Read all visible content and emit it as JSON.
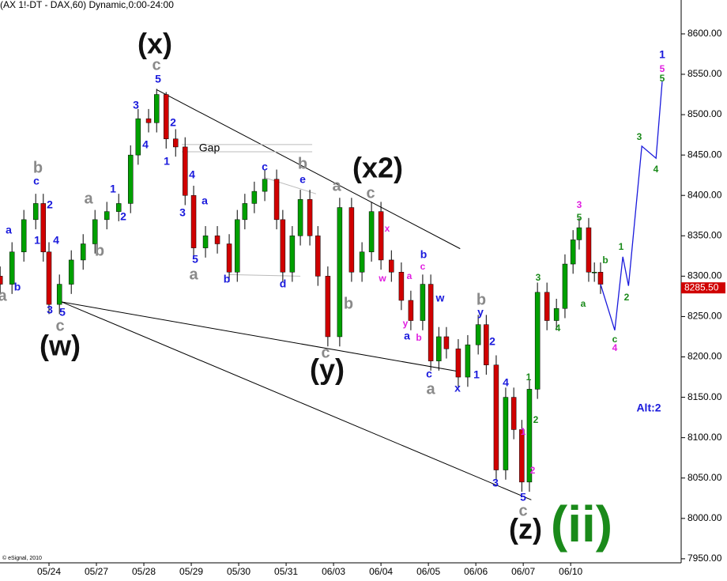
{
  "chart_data": {
    "type": "candlestick",
    "title": "(AX 1!-DT - DAX,60) Dynamic,0:00-24:00",
    "copyright": "© eSignal, 2010",
    "candles": {
      "x": [
        -1.03,
        -0.78,
        -0.53,
        -0.28,
        -0.12,
        0,
        0.22,
        0.47,
        0.72,
        0.97,
        1.22,
        1.47,
        1.72,
        1.88,
        2.1,
        2.27,
        2.47,
        2.67,
        2.87,
        3.05,
        3.3,
        3.55,
        3.8,
        3.97,
        4.13,
        4.33,
        4.55,
        4.8,
        4.93,
        5.13,
        5.3,
        5.5,
        5.67,
        5.88,
        6.13,
        6.38,
        6.6,
        6.8,
        7.0,
        7.22,
        7.43,
        7.63,
        7.88,
        8.05,
        8.22,
        8.38,
        8.63,
        8.83,
        9.05,
        9.22,
        9.43,
        9.63,
        9.8,
        9.97,
        10.13,
        10.3,
        10.5,
        10.7,
        10.88,
        11.05,
        11.18,
        11.38,
        11.5,
        11.63
      ],
      "open": [
        8300,
        8290,
        8330,
        8370,
        8390,
        8330,
        8265,
        8290,
        8320,
        8340,
        8370,
        8380,
        8390,
        8450,
        8495,
        8490,
        8525,
        8470,
        8460,
        8400,
        8335,
        8350,
        8340,
        8305,
        8370,
        8390,
        8405,
        8420,
        8370,
        8305,
        8350,
        8395,
        8350,
        8300,
        8225,
        8385,
        8305,
        8330,
        8380,
        8320,
        8305,
        8270,
        8245,
        8290,
        8195,
        8225,
        8210,
        8175,
        8215,
        8240,
        8190,
        8060,
        8150,
        8110,
        8045,
        8160,
        8280,
        8245,
        8260,
        8315,
        8345,
        8360,
        8305,
        8305
      ],
      "high": [
        8312,
        8342,
        8382,
        8402,
        8402,
        8342,
        8302,
        8332,
        8352,
        8382,
        8392,
        8402,
        8462,
        8507,
        8507,
        8532,
        8528,
        8482,
        8472,
        8412,
        8362,
        8362,
        8352,
        8382,
        8402,
        8417,
        8432,
        8432,
        8382,
        8362,
        8407,
        8407,
        8362,
        8312,
        8397,
        8397,
        8342,
        8392,
        8392,
        8332,
        8317,
        8282,
        8302,
        8302,
        8237,
        8237,
        8222,
        8227,
        8252,
        8252,
        8202,
        8162,
        8162,
        8122,
        8172,
        8292,
        8292,
        8272,
        8327,
        8357,
        8372,
        8372,
        8317,
        8317
      ],
      "low": [
        8278,
        8278,
        8318,
        8358,
        8318,
        8253,
        8253,
        8278,
        8308,
        8328,
        8358,
        8368,
        8378,
        8438,
        8478,
        8478,
        8458,
        8448,
        8388,
        8323,
        8323,
        8328,
        8293,
        8293,
        8358,
        8378,
        8393,
        8358,
        8293,
        8293,
        8338,
        8338,
        8288,
        8213,
        8213,
        8293,
        8293,
        8318,
        8308,
        8293,
        8258,
        8233,
        8233,
        8183,
        8183,
        8198,
        8163,
        8163,
        8203,
        8178,
        8048,
        8048,
        8098,
        8033,
        8033,
        8148,
        8233,
        8233,
        8248,
        8303,
        8333,
        8293,
        8293,
        8278
      ],
      "close": [
        8290,
        8330,
        8370,
        8390,
        8330,
        8265,
        8290,
        8320,
        8340,
        8370,
        8380,
        8390,
        8450,
        8495,
        8490,
        8525,
        8470,
        8460,
        8400,
        8335,
        8350,
        8340,
        8305,
        8370,
        8390,
        8405,
        8420,
        8370,
        8305,
        8350,
        8395,
        8350,
        8300,
        8225,
        8385,
        8305,
        8330,
        8380,
        8320,
        8305,
        8270,
        8245,
        8290,
        8195,
        8225,
        8210,
        8175,
        8215,
        8240,
        8190,
        8060,
        8150,
        8110,
        8045,
        8160,
        8280,
        8245,
        8260,
        8315,
        8345,
        8360,
        8305,
        8305,
        8290
      ],
      "up_color": "#00a000",
      "down_color": "#d00000"
    },
    "projection": {
      "x": [
        11.63,
        11.93,
        12.1,
        12.22,
        12.5,
        12.8,
        12.93
      ],
      "y": [
        8290,
        8233,
        8324,
        8288,
        8461,
        8446,
        8541
      ],
      "color": "#1a1adc"
    },
    "trendlines": [
      {
        "x": [
          2.27,
          8.67
        ],
        "y": [
          8531,
          8334
        ],
        "color": "#000000"
      },
      {
        "x": [
          0.27,
          8.63
        ],
        "y": [
          8268,
          8182
        ],
        "color": "#000000"
      },
      {
        "x": [
          0.27,
          10.17
        ],
        "y": [
          8268,
          8023
        ],
        "color": "#000000"
      },
      {
        "x": [
          2.8,
          5.55
        ],
        "y": [
          8463,
          8463
        ],
        "color": "#bbbbbb"
      },
      {
        "x": [
          2.8,
          5.55
        ],
        "y": [
          8454,
          8454
        ],
        "color": "#bbbbbb"
      },
      {
        "x": [
          4.55,
          5.63
        ],
        "y": [
          8422,
          8402
        ],
        "color": "#bbbbbb"
      },
      {
        "x": [
          3.8,
          5.3
        ],
        "y": [
          8302,
          8300
        ],
        "color": "#bbbbbb"
      }
    ],
    "last_price": {
      "value": 8285.5,
      "label": "8285.50",
      "color": "#d00000"
    },
    "xlim": [
      -1.033,
      13.33
    ],
    "ylim": [
      7945,
      8642
    ],
    "xticks": [
      {
        "value": 0,
        "label": "05/24"
      },
      {
        "value": 1,
        "label": "05/27"
      },
      {
        "value": 2,
        "label": "05/28"
      },
      {
        "value": 3,
        "label": "05/29"
      },
      {
        "value": 4,
        "label": "05/30"
      },
      {
        "value": 5,
        "label": "05/31"
      },
      {
        "value": 6,
        "label": "06/03"
      },
      {
        "value": 7,
        "label": "06/04"
      },
      {
        "value": 8,
        "label": "06/05"
      },
      {
        "value": 9,
        "label": "06/06"
      },
      {
        "value": 10,
        "label": "06/07"
      },
      {
        "value": 11,
        "label": "06/10"
      }
    ],
    "yticks": [
      {
        "value": 7950,
        "label": "7950.00"
      },
      {
        "value": 8000,
        "label": "8000.00"
      },
      {
        "value": 8050,
        "label": "8050.00"
      },
      {
        "value": 8100,
        "label": "8100.00"
      },
      {
        "value": 8150,
        "label": "8150.00"
      },
      {
        "value": 8200,
        "label": "8200.00"
      },
      {
        "value": 8250,
        "label": "8250.00"
      },
      {
        "value": 8300,
        "label": "8300.00"
      },
      {
        "value": 8350,
        "label": "8350.00"
      },
      {
        "value": 8400,
        "label": "8400.00"
      },
      {
        "value": 8450,
        "label": "8450.00"
      },
      {
        "value": 8500,
        "label": "8500.00"
      },
      {
        "value": 8550,
        "label": "8550.00"
      },
      {
        "value": 8600,
        "label": "8600.00"
      }
    ],
    "annotations": [
      "(x)",
      "(w)",
      "(y)",
      "(x2)",
      "(z)",
      "(ii)",
      "c",
      "c",
      "c",
      "c",
      "c",
      "b",
      "a",
      "b",
      "a",
      "b",
      "a",
      "b",
      "b",
      "a",
      "a",
      "5",
      "3",
      "4",
      "2",
      "1",
      "4",
      "3",
      "a",
      "5",
      "b",
      "c",
      "e",
      "d",
      "5",
      "3",
      "4",
      "1",
      "2",
      "c",
      "a",
      "b",
      "1",
      "2",
      "b",
      "w",
      "a",
      "c",
      "x",
      "y",
      "1",
      "2",
      "4",
      "3",
      "5",
      "1",
      "Alt:2",
      "y",
      "c",
      "a",
      "w",
      "x",
      "b",
      "1",
      "2",
      "3",
      "5",
      "4",
      "5",
      "3",
      "4",
      "1",
      "2",
      "a",
      "b",
      "1",
      "2",
      "3",
      "4",
      "5",
      "c",
      "Gap"
    ]
  }
}
